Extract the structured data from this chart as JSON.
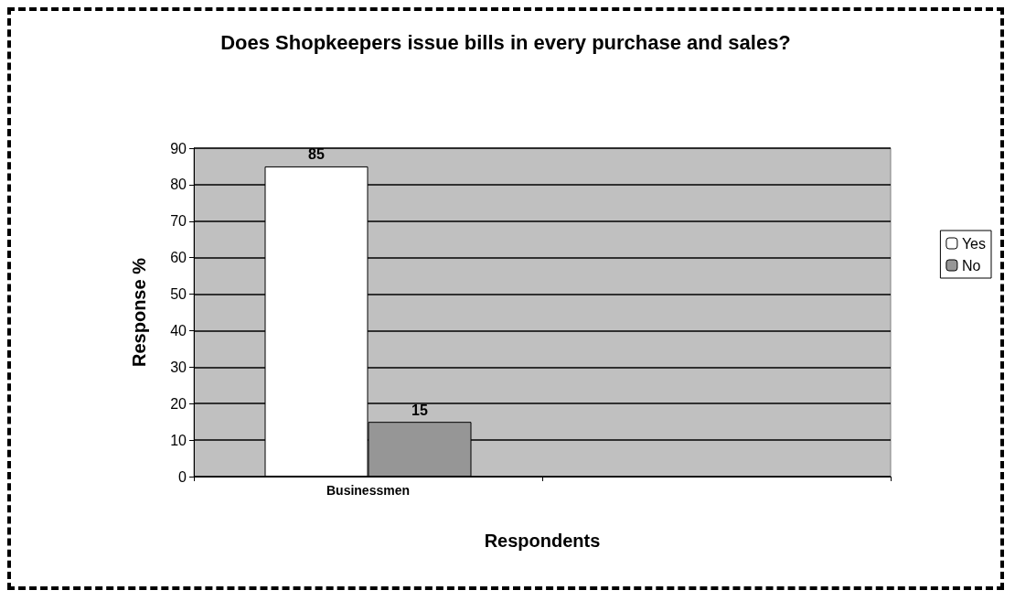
{
  "chart_data": {
    "type": "bar",
    "title": "Does Shopkeepers issue bills in every purchase and sales?",
    "xlabel": "Respondents",
    "ylabel": "Response %",
    "categories": [
      "Businessmen",
      null
    ],
    "series": [
      {
        "name": "Yes",
        "color": "#ffffff",
        "values": [
          85,
          null
        ]
      },
      {
        "name": "No",
        "color": "#969696",
        "values": [
          15,
          null
        ]
      }
    ],
    "ylim": [
      0,
      90
    ],
    "yticks": [
      0,
      10,
      20,
      30,
      40,
      50,
      60,
      70,
      80,
      90
    ],
    "grid": "y",
    "legend": "right",
    "data_labels": true
  }
}
